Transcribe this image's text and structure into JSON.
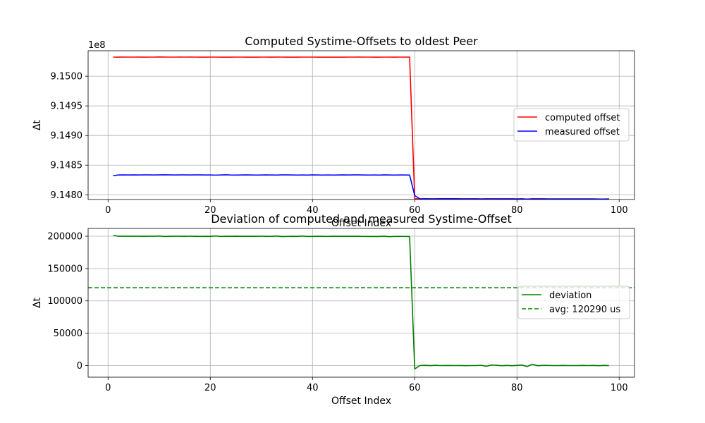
{
  "chart_data": [
    {
      "type": "line",
      "title": "Computed Systime-Offsets to oldest Peer",
      "xlabel": "Offset Index",
      "ylabel": "Δt",
      "offset_text": "1e8",
      "xlim": [
        -3.9,
        103
      ],
      "ylim": [
        914792000,
        915043000
      ],
      "xticks": [
        0,
        20,
        40,
        60,
        80,
        100
      ],
      "yticks": [
        914800000,
        914850000,
        914900000,
        914950000,
        915000000
      ],
      "ytick_labels": [
        "9.1480",
        "9.1485",
        "9.1490",
        "9.1495",
        "9.1500"
      ],
      "grid": true,
      "legend": "center-right",
      "series": [
        {
          "name": "computed offset",
          "color": "#ff0000",
          "x": [
            1,
            2,
            3,
            4,
            5,
            6,
            7,
            8,
            9,
            10,
            11,
            12,
            13,
            14,
            15,
            16,
            17,
            18,
            19,
            20,
            21,
            22,
            23,
            24,
            25,
            26,
            27,
            28,
            29,
            30,
            31,
            32,
            33,
            34,
            35,
            36,
            37,
            38,
            39,
            40,
            41,
            42,
            43,
            44,
            45,
            46,
            47,
            48,
            49,
            50,
            51,
            52,
            53,
            54,
            55,
            56,
            57,
            58,
            59,
            60,
            61,
            62,
            63,
            64,
            65,
            66,
            67,
            68,
            69,
            70,
            71,
            72,
            73,
            74,
            75,
            76,
            77,
            78,
            79,
            80,
            81,
            82,
            83,
            84,
            85,
            86,
            87,
            88,
            89,
            90,
            91,
            92,
            93,
            94,
            95,
            96,
            97,
            98
          ],
          "values": [
            915032300,
            915032200,
            915032400,
            915032300,
            915032300,
            915032400,
            915032200,
            915032300,
            915032300,
            915032500,
            915032400,
            915032300,
            915032300,
            915032400,
            915032300,
            915032400,
            915032300,
            915032200,
            915032200,
            915032300,
            915032300,
            915032200,
            915032300,
            915032200,
            915032300,
            915032300,
            915032200,
            915032300,
            915032200,
            915032300,
            915032300,
            915032200,
            915032400,
            915032300,
            915032200,
            915032300,
            915032200,
            915032300,
            915032300,
            915032300,
            915032200,
            915032300,
            915032200,
            915032200,
            915032300,
            915032200,
            915032300,
            915032300,
            915032400,
            915032300,
            915032300,
            915032200,
            915032200,
            915032300,
            915032300,
            915032200,
            915032300,
            915032300,
            915032200,
            914793400,
            914793200,
            914793300,
            914793200,
            914793200,
            914793300,
            914793300,
            914793300,
            914793300,
            914793200,
            914793200,
            914793100,
            914793200,
            914793000,
            914793100,
            914793200,
            914793200,
            914793100,
            914793100,
            914793100,
            914793000,
            914793100,
            914792700,
            914793100,
            914793100,
            914793100,
            914793000,
            914793000,
            914793000,
            914793000,
            914793000,
            914793000,
            914793000,
            914793000,
            914793000,
            914793000,
            914792900,
            914792900,
            914793000
          ]
        },
        {
          "name": "measured offset",
          "color": "#0000ff",
          "x": [
            1,
            2,
            3,
            4,
            5,
            6,
            7,
            8,
            9,
            10,
            11,
            12,
            13,
            14,
            15,
            16,
            17,
            18,
            19,
            20,
            21,
            22,
            23,
            24,
            25,
            26,
            27,
            28,
            29,
            30,
            31,
            32,
            33,
            34,
            35,
            36,
            37,
            38,
            39,
            40,
            41,
            42,
            43,
            44,
            45,
            46,
            47,
            48,
            49,
            50,
            51,
            52,
            53,
            54,
            55,
            56,
            57,
            58,
            59,
            60,
            61,
            62,
            63,
            64,
            65,
            66,
            67,
            68,
            69,
            70,
            71,
            72,
            73,
            74,
            75,
            76,
            77,
            78,
            79,
            80,
            81,
            82,
            83,
            84,
            85,
            86,
            87,
            88,
            89,
            90,
            91,
            92,
            93,
            94,
            95,
            96,
            97,
            98
          ],
          "values": [
            914832200,
            914833400,
            914833500,
            914833400,
            914833500,
            914833400,
            914833500,
            914833500,
            914833400,
            914833500,
            914833700,
            914833500,
            914833400,
            914833500,
            914833500,
            914833400,
            914833500,
            914833500,
            914833400,
            914833400,
            914833200,
            914833400,
            914833700,
            914833400,
            914833300,
            914833400,
            914833500,
            914833400,
            914833300,
            914833400,
            914833500,
            914833400,
            914833300,
            914833600,
            914833500,
            914833400,
            914833300,
            914833400,
            914833300,
            914833500,
            914833400,
            914833300,
            914833400,
            914833300,
            914833400,
            914833500,
            914833400,
            914833500,
            914833500,
            914833400,
            914833300,
            914833400,
            914833300,
            914833500,
            914833400,
            914833300,
            914833400,
            914833400,
            914833300,
            914798700,
            914793200,
            914793300,
            914793200,
            914793200,
            914793300,
            914793300,
            914793300,
            914793300,
            914793200,
            914793200,
            914793100,
            914793200,
            914793000,
            914793100,
            914793200,
            914793200,
            914793100,
            914793100,
            914793100,
            914793000,
            914793100,
            914792700,
            914793100,
            914793100,
            914793100,
            914793000,
            914793000,
            914793000,
            914793000,
            914793000,
            914793000,
            914793000,
            914793000,
            914793000,
            914793000,
            914792900,
            914792900,
            914793000
          ]
        }
      ]
    },
    {
      "type": "line",
      "title": "Deviation of computed and measured Systime-Offset",
      "xlabel": "Offset Index",
      "ylabel": "Δt",
      "xlim": [
        -3.9,
        103
      ],
      "ylim": [
        -18000,
        212000
      ],
      "xticks": [
        0,
        20,
        40,
        60,
        80,
        100
      ],
      "yticks": [
        0,
        50000,
        100000,
        150000,
        200000
      ],
      "grid": true,
      "legend": "center-right",
      "series": [
        {
          "name": "deviation",
          "color": "#008000",
          "style": "solid",
          "x": [
            1,
            2,
            3,
            4,
            5,
            6,
            7,
            8,
            9,
            10,
            11,
            12,
            13,
            14,
            15,
            16,
            17,
            18,
            19,
            20,
            21,
            22,
            23,
            24,
            25,
            26,
            27,
            28,
            29,
            30,
            31,
            32,
            33,
            34,
            35,
            36,
            37,
            38,
            39,
            40,
            41,
            42,
            43,
            44,
            45,
            46,
            47,
            48,
            49,
            50,
            51,
            52,
            53,
            54,
            55,
            56,
            57,
            58,
            59,
            60,
            61,
            62,
            63,
            64,
            65,
            66,
            67,
            68,
            69,
            70,
            71,
            72,
            73,
            74,
            75,
            76,
            77,
            78,
            79,
            80,
            81,
            82,
            83,
            84,
            85,
            86,
            87,
            88,
            89,
            90,
            91,
            92,
            93,
            94,
            95,
            96,
            97,
            98
          ],
          "values": [
            201100,
            199900,
            199900,
            200000,
            199900,
            199900,
            199800,
            199900,
            199900,
            200200,
            199600,
            199800,
            199900,
            199900,
            199800,
            200000,
            199800,
            199700,
            199800,
            199700,
            200300,
            199600,
            199800,
            199800,
            199900,
            199800,
            199800,
            199800,
            199800,
            200000,
            199700,
            199800,
            200200,
            199400,
            199600,
            199800,
            199700,
            200200,
            199600,
            199700,
            199800,
            199800,
            199600,
            199900,
            199800,
            199800,
            199800,
            199800,
            199800,
            199600,
            199500,
            199500,
            199500,
            200100,
            199200,
            199600,
            199700,
            199600,
            199500,
            -5300,
            0,
            300,
            -100,
            300,
            0,
            100,
            100,
            0,
            100,
            -200,
            0,
            0,
            400,
            -1200,
            800,
            400,
            -200,
            200,
            -200,
            200,
            700,
            -1600,
            2000,
            -200,
            200,
            200,
            0,
            0,
            200,
            0,
            0,
            0,
            200,
            0,
            200,
            -200,
            200,
            0
          ]
        },
        {
          "name": "avg: 120290 us",
          "color": "#008000",
          "style": "dashed",
          "hline": 120290
        }
      ]
    }
  ]
}
